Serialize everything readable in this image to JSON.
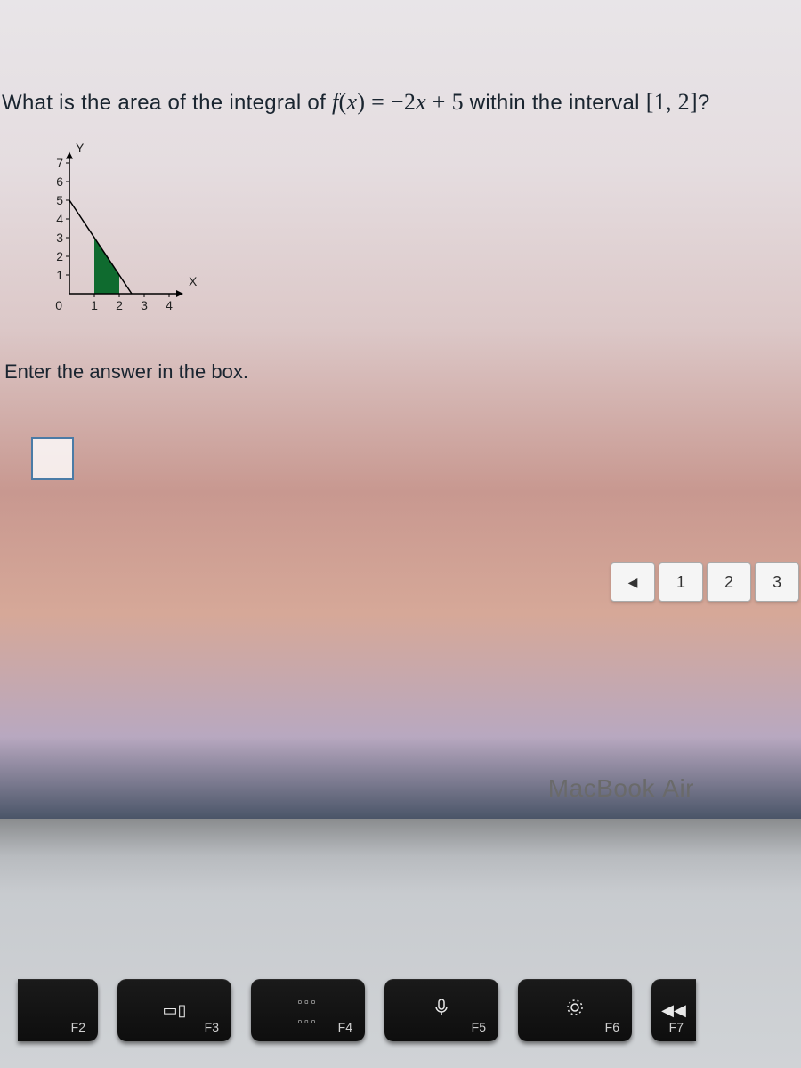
{
  "question": {
    "prefix": "What is the area of the integral of ",
    "fn_left": "f",
    "fn_paren_l": "(",
    "fn_var": "x",
    "fn_paren_r": ")",
    "eq": " = ",
    "rhs_m": "−2",
    "rhs_x": "x",
    "rhs_plus": " + 5",
    "mid": "within the interval ",
    "interval": "[1,  2]",
    "suffix": "?"
  },
  "chart": {
    "y_axis_label": "Y",
    "x_axis_label": "X",
    "y_ticks": [
      7,
      6,
      5,
      4,
      3,
      2,
      1
    ],
    "x_ticks": [
      0,
      1,
      2,
      3,
      4
    ],
    "x_range": [
      0,
      4.5
    ],
    "y_range": [
      0,
      7.5
    ],
    "line_points": [
      [
        0,
        5
      ],
      [
        2.5,
        0
      ]
    ],
    "shade_polygon": [
      [
        1,
        0
      ],
      [
        1,
        3
      ],
      [
        2,
        1
      ],
      [
        2,
        0
      ]
    ],
    "axis_color": "#000000",
    "line_color": "#000000",
    "shade_color": "#0f6b2f",
    "tick_length": 4
  },
  "prompt": "Enter the answer in the box.",
  "nav": {
    "back_icon": "◀",
    "b1": "1",
    "b2": "2",
    "b3": "3"
  },
  "brand": {
    "name": "MacBook ",
    "model": "Air"
  },
  "keys": [
    {
      "name": "f2",
      "label": "F2",
      "icon": "brightness"
    },
    {
      "name": "f3",
      "label": "F3",
      "icon": "expose"
    },
    {
      "name": "f4",
      "label": "F4",
      "icon": "grid"
    },
    {
      "name": "f5",
      "label": "F5",
      "icon": "mic"
    },
    {
      "name": "f6",
      "label": "F6",
      "icon": "dnd"
    },
    {
      "name": "f7",
      "label": "F7",
      "icon": "rewind"
    }
  ]
}
